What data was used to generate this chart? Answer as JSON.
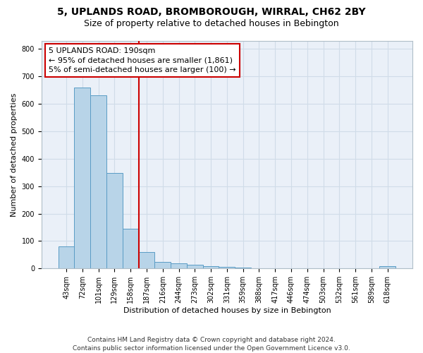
{
  "title": "5, UPLANDS ROAD, BROMBOROUGH, WIRRAL, CH62 2BY",
  "subtitle": "Size of property relative to detached houses in Bebington",
  "xlabel": "Distribution of detached houses by size in Bebington",
  "ylabel": "Number of detached properties",
  "bar_labels": [
    "43sqm",
    "72sqm",
    "101sqm",
    "129sqm",
    "158sqm",
    "187sqm",
    "216sqm",
    "244sqm",
    "273sqm",
    "302sqm",
    "331sqm",
    "359sqm",
    "388sqm",
    "417sqm",
    "446sqm",
    "474sqm",
    "503sqm",
    "532sqm",
    "561sqm",
    "589sqm",
    "618sqm"
  ],
  "bar_heights": [
    80,
    660,
    630,
    348,
    145,
    60,
    25,
    18,
    14,
    8,
    5,
    3,
    2,
    2,
    2,
    2,
    2,
    2,
    2,
    2,
    8
  ],
  "bar_color": "#b8d4e8",
  "bar_edge_color": "#5a9cc5",
  "vline_x": 4.5,
  "vline_color": "#cc0000",
  "annotation_text": "5 UPLANDS ROAD: 190sqm\n← 95% of detached houses are smaller (1,861)\n5% of semi-detached houses are larger (100) →",
  "annotation_box_color": "#cc0000",
  "ylim": [
    0,
    830
  ],
  "yticks": [
    0,
    100,
    200,
    300,
    400,
    500,
    600,
    700,
    800
  ],
  "footer": "Contains HM Land Registry data © Crown copyright and database right 2024.\nContains public sector information licensed under the Open Government Licence v3.0.",
  "bg_color": "#eaf0f8",
  "grid_color": "#d0dce8",
  "title_fontsize": 10,
  "subtitle_fontsize": 9,
  "ann_fontsize": 8,
  "axis_fontsize": 8,
  "tick_fontsize": 7,
  "footer_fontsize": 6.5
}
